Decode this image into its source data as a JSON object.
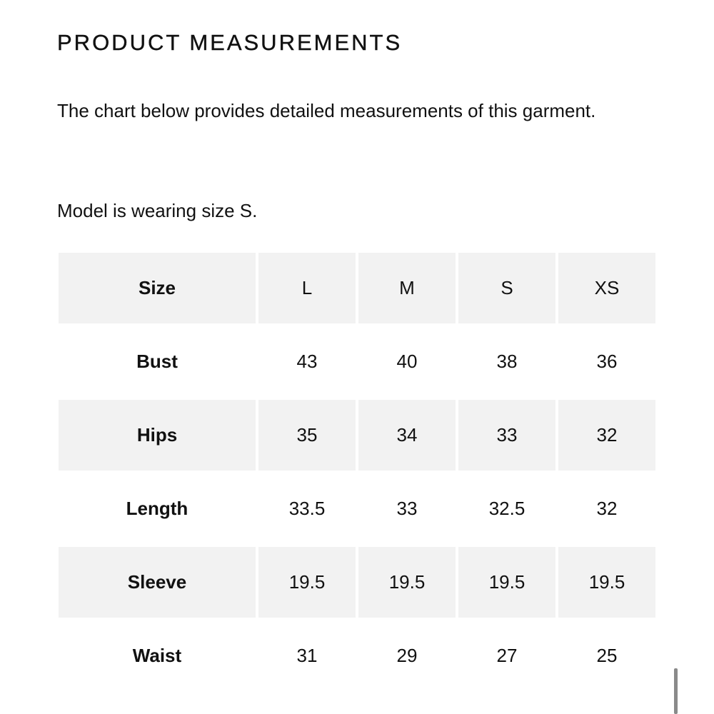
{
  "header": {
    "title": "PRODUCT MEASUREMENTS"
  },
  "description": "The chart below provides detailed measurements of this garment.",
  "model_note": "Model is wearing size S.",
  "table": {
    "header": [
      "Size",
      "L",
      "M",
      "S",
      "XS"
    ],
    "rows": [
      [
        "Bust",
        43,
        40,
        38,
        36
      ],
      [
        "Hips",
        35,
        34,
        33,
        32
      ],
      [
        "Length",
        33.5,
        33,
        32.5,
        32
      ],
      [
        "Sleeve",
        19.5,
        19.5,
        19.5,
        19.5
      ],
      [
        "Waist",
        31,
        29,
        27,
        25
      ]
    ]
  }
}
